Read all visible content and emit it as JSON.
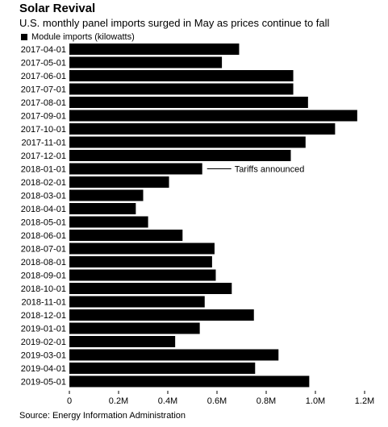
{
  "title": "Solar Revival",
  "subtitle": "U.S. monthly panel imports surged in May as prices continue to fall",
  "legend": {
    "label": "Module imports (kilowatts)",
    "color": "#000000"
  },
  "source": "Source: Energy Information Administration",
  "chart_data": {
    "type": "bar",
    "orientation": "horizontal",
    "categories": [
      "2017-04-01",
      "2017-05-01",
      "2017-06-01",
      "2017-07-01",
      "2017-08-01",
      "2017-09-01",
      "2017-10-01",
      "2017-11-01",
      "2017-12-01",
      "2018-01-01",
      "2018-02-01",
      "2018-03-01",
      "2018-04-01",
      "2018-05-01",
      "2018-06-01",
      "2018-07-01",
      "2018-08-01",
      "2018-09-01",
      "2018-10-01",
      "2018-11-01",
      "2018-12-01",
      "2019-01-01",
      "2019-02-01",
      "2019-03-01",
      "2019-04-01",
      "2019-05-01"
    ],
    "series": [
      {
        "name": "Module imports (kilowatts)",
        "values": [
          690000,
          620000,
          910000,
          910000,
          970000,
          1170000,
          1080000,
          960000,
          900000,
          540000,
          405000,
          300000,
          270000,
          320000,
          460000,
          590000,
          580000,
          595000,
          660000,
          550000,
          750000,
          530000,
          430000,
          850000,
          755000,
          975000
        ]
      }
    ],
    "xlim": [
      0,
      1200000
    ],
    "xticks": [
      {
        "value": 0,
        "label": "0"
      },
      {
        "value": 200000,
        "label": "0.2M"
      },
      {
        "value": 400000,
        "label": "0.4M"
      },
      {
        "value": 600000,
        "label": "0.6M"
      },
      {
        "value": 800000,
        "label": "0.8M"
      },
      {
        "value": 1000000,
        "label": "1.0M"
      },
      {
        "value": 1200000,
        "label": "1.2M"
      }
    ],
    "grid": false,
    "legend_position": "top-left",
    "annotations": [
      {
        "category": "2018-01-01",
        "text": "Tariffs announced"
      }
    ]
  }
}
